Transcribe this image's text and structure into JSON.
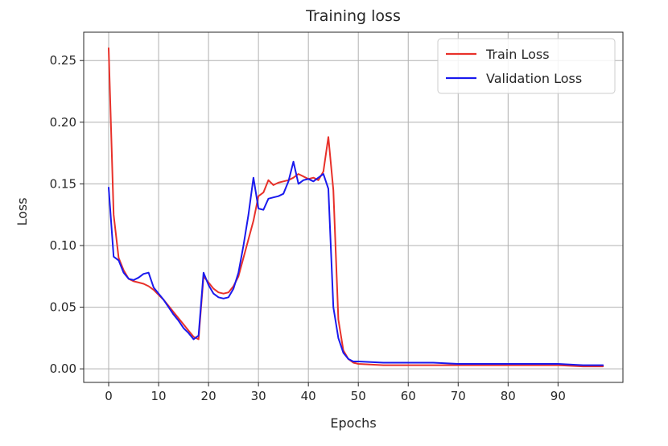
{
  "chart_data": {
    "type": "line",
    "title": "Training loss",
    "xlabel": "Epochs",
    "ylabel": "Loss",
    "xlim": [
      -5,
      103
    ],
    "ylim": [
      -0.011,
      0.273
    ],
    "xticks": [
      0,
      10,
      20,
      30,
      40,
      50,
      60,
      70,
      80,
      90
    ],
    "xtick_labels": [
      "0",
      "10",
      "20",
      "30",
      "40",
      "50",
      "60",
      "70",
      "80",
      "90"
    ],
    "yticks": [
      0.0,
      0.05,
      0.1,
      0.15,
      0.2,
      0.25
    ],
    "ytick_labels": [
      "0.00",
      "0.05",
      "0.10",
      "0.15",
      "0.20",
      "0.25"
    ],
    "grid": true,
    "legend_position": "top-right",
    "series": [
      {
        "name": "Train Loss",
        "color": "#e8312a",
        "x": [
          0,
          1,
          2,
          3,
          4,
          5,
          6,
          7,
          8,
          9,
          10,
          11,
          12,
          13,
          14,
          15,
          16,
          17,
          18,
          19,
          20,
          21,
          22,
          23,
          24,
          25,
          26,
          27,
          28,
          29,
          30,
          31,
          32,
          33,
          34,
          35,
          36,
          37,
          38,
          39,
          40,
          41,
          42,
          43,
          44,
          45,
          46,
          47,
          48,
          49,
          50,
          55,
          60,
          65,
          70,
          75,
          80,
          85,
          90,
          95,
          99
        ],
        "y": [
          0.26,
          0.125,
          0.09,
          0.08,
          0.073,
          0.071,
          0.07,
          0.069,
          0.067,
          0.064,
          0.06,
          0.056,
          0.051,
          0.046,
          0.041,
          0.036,
          0.031,
          0.026,
          0.024,
          0.075,
          0.07,
          0.065,
          0.062,
          0.061,
          0.062,
          0.067,
          0.075,
          0.09,
          0.105,
          0.12,
          0.14,
          0.143,
          0.153,
          0.149,
          0.151,
          0.152,
          0.153,
          0.155,
          0.158,
          0.156,
          0.154,
          0.155,
          0.153,
          0.16,
          0.188,
          0.145,
          0.04,
          0.015,
          0.008,
          0.005,
          0.004,
          0.003,
          0.003,
          0.003,
          0.003,
          0.003,
          0.003,
          0.003,
          0.003,
          0.002,
          0.002
        ]
      },
      {
        "name": "Validation Loss",
        "color": "#1a1aee",
        "x": [
          0,
          1,
          2,
          3,
          4,
          5,
          6,
          7,
          8,
          9,
          10,
          11,
          12,
          13,
          14,
          15,
          16,
          17,
          18,
          19,
          20,
          21,
          22,
          23,
          24,
          25,
          26,
          27,
          28,
          29,
          30,
          31,
          32,
          33,
          34,
          35,
          36,
          37,
          38,
          39,
          40,
          41,
          42,
          43,
          44,
          45,
          46,
          47,
          48,
          49,
          50,
          55,
          60,
          65,
          70,
          75,
          80,
          85,
          90,
          95,
          99
        ],
        "y": [
          0.147,
          0.091,
          0.088,
          0.078,
          0.073,
          0.072,
          0.074,
          0.077,
          0.078,
          0.066,
          0.061,
          0.056,
          0.05,
          0.044,
          0.039,
          0.033,
          0.029,
          0.024,
          0.027,
          0.078,
          0.068,
          0.061,
          0.058,
          0.057,
          0.058,
          0.065,
          0.078,
          0.1,
          0.125,
          0.155,
          0.13,
          0.129,
          0.138,
          0.139,
          0.14,
          0.142,
          0.152,
          0.168,
          0.15,
          0.153,
          0.154,
          0.152,
          0.155,
          0.158,
          0.146,
          0.05,
          0.025,
          0.013,
          0.008,
          0.006,
          0.006,
          0.005,
          0.005,
          0.005,
          0.004,
          0.004,
          0.004,
          0.004,
          0.004,
          0.003,
          0.003
        ]
      }
    ]
  }
}
